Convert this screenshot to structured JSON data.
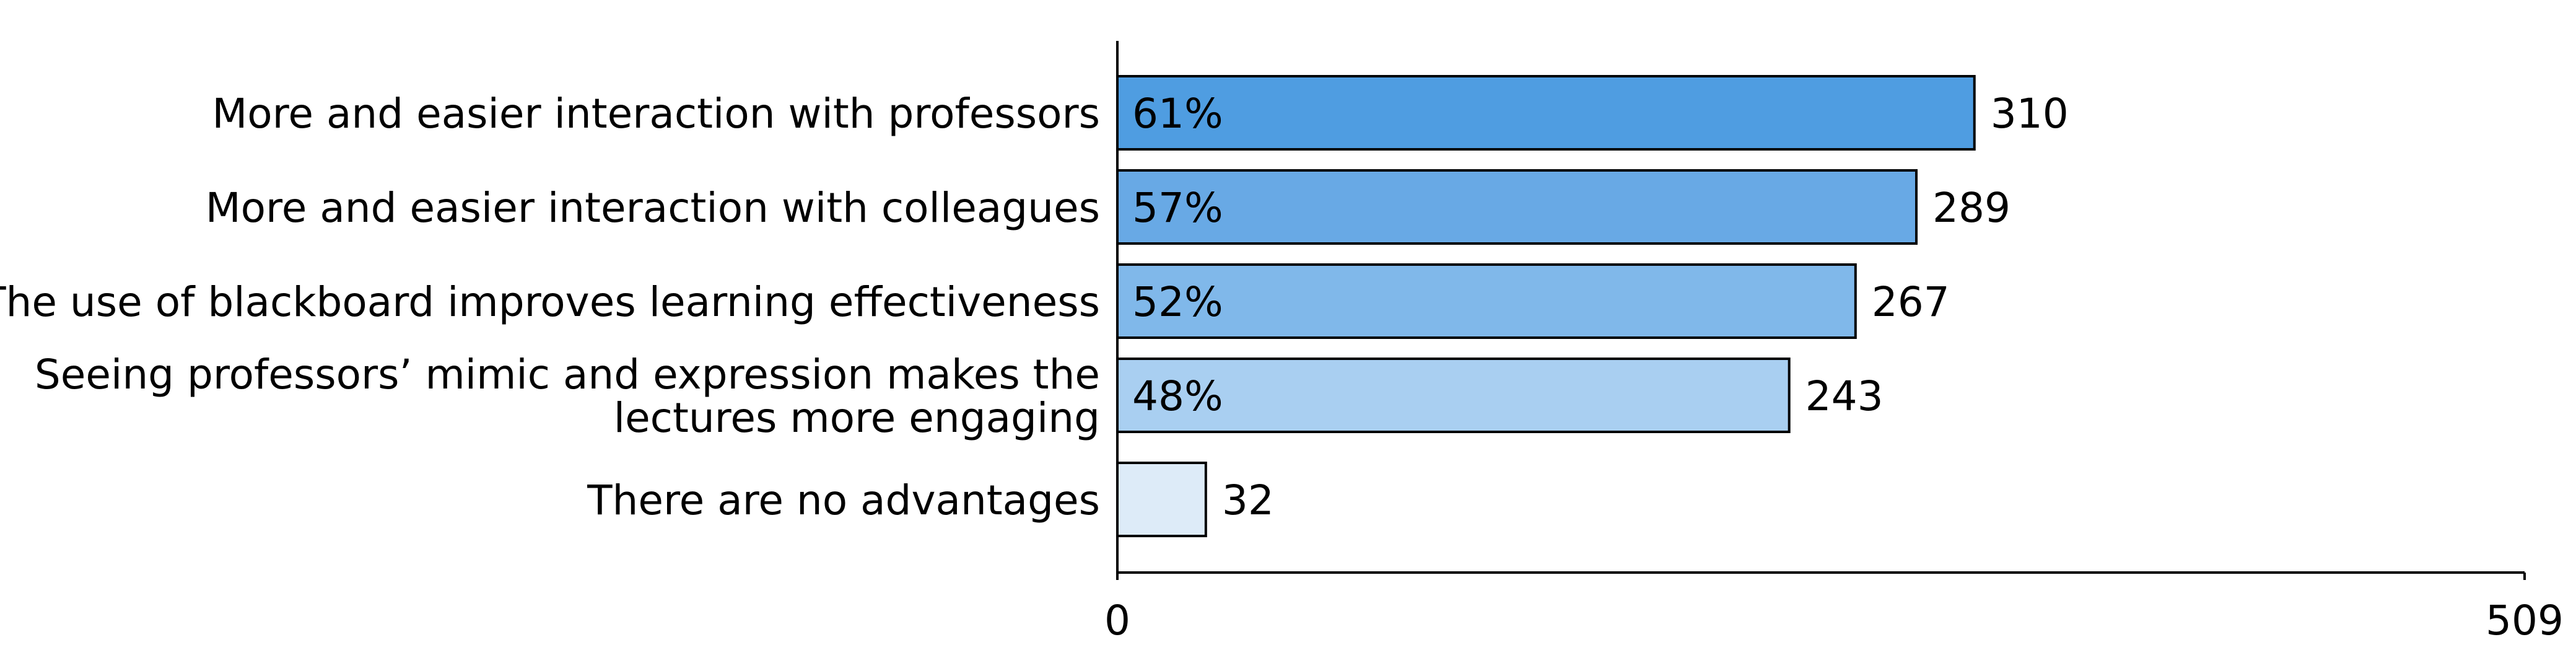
{
  "chart_data": {
    "type": "bar",
    "orientation": "horizontal",
    "title": "",
    "xlabel": "",
    "ylabel": "",
    "xlim": [
      0,
      509
    ],
    "x_ticks": [
      "0",
      "509"
    ],
    "grid": false,
    "legend": "none",
    "categories": [
      [
        "More and easier interaction with professors"
      ],
      [
        "More and easier interaction with colleagues"
      ],
      [
        "The use of blackboard improves learning effectiveness"
      ],
      [
        "Seeing professors’ mimic and expression makes the",
        "lectures more engaging"
      ],
      [
        "There are no advantages"
      ]
    ],
    "values": [
      310,
      289,
      267,
      243,
      32
    ],
    "value_labels": [
      "310",
      "289",
      "267",
      "243",
      "32"
    ],
    "percent_labels": [
      "61%",
      "57%",
      "52%",
      "48%",
      ""
    ],
    "bar_colors": [
      "#4f9de1",
      "#68a9e5",
      "#80b8ea",
      "#a9cff1",
      "#ddebf8"
    ]
  }
}
